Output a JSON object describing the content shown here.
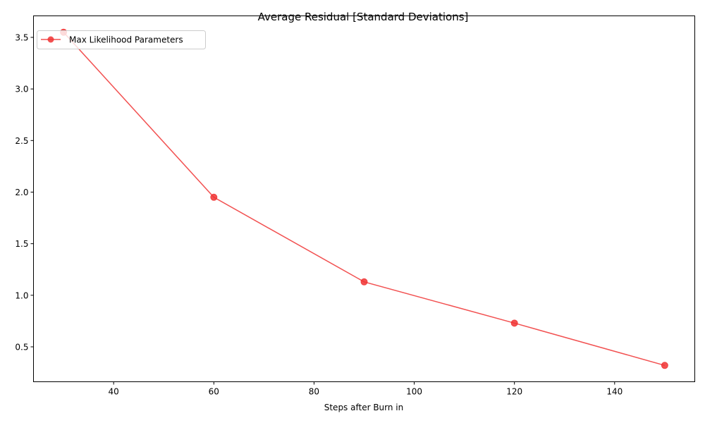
{
  "chart_data": {
    "type": "line",
    "title": "Average Residual [Standard Deviations]",
    "xlabel": "Steps after Burn in",
    "ylabel": "",
    "x": [
      30,
      60,
      90,
      120,
      150
    ],
    "series": [
      {
        "name": "Max Likelihood Parameters",
        "values": [
          3.55,
          1.95,
          1.13,
          0.73,
          0.32
        ],
        "color": "#f03232",
        "marker": "circle"
      }
    ],
    "xlim": [
      24.0,
      156.0
    ],
    "ylim": [
      0.1615,
      3.7085
    ],
    "xticks": [
      40,
      60,
      80,
      100,
      120,
      140
    ],
    "yticks": [
      0.5,
      1.0,
      1.5,
      2.0,
      2.5,
      3.0,
      3.5
    ],
    "xtick_labels": [
      "40",
      "60",
      "80",
      "100",
      "120",
      "140"
    ],
    "ytick_labels": [
      "0.5",
      "1.0",
      "1.5",
      "2.0",
      "2.5",
      "3.0",
      "3.5"
    ],
    "grid": false,
    "legend_position": "top-left"
  }
}
